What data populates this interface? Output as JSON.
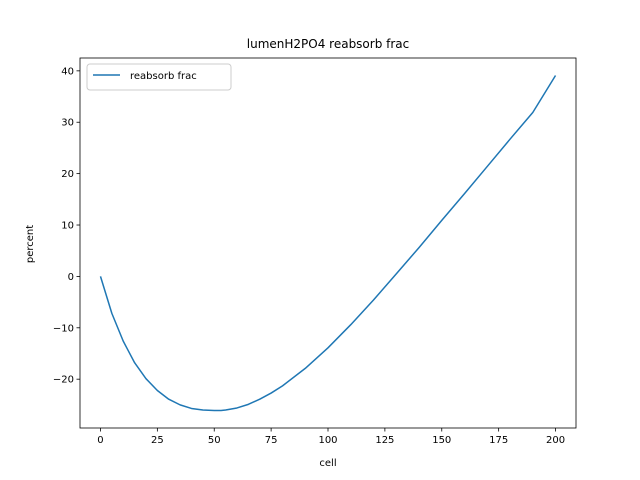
{
  "chart_data": {
    "type": "line",
    "title": "lumenH2PO4 reabsorb frac",
    "xlabel": "cell",
    "ylabel": "percent",
    "xlim": [
      -9,
      209
    ],
    "ylim": [
      -29.5,
      42.5
    ],
    "xticks": [
      0,
      25,
      50,
      75,
      100,
      125,
      150,
      175,
      200
    ],
    "yticks": [
      -20,
      -10,
      0,
      10,
      20,
      30,
      40
    ],
    "xtick_labels": [
      "0",
      "25",
      "50",
      "75",
      "100",
      "125",
      "150",
      "175",
      "200"
    ],
    "ytick_labels": [
      "−20",
      "−10",
      "0",
      "10",
      "20",
      "30",
      "40"
    ],
    "grid": false,
    "legend_position": "top-left",
    "series": [
      {
        "name": "reabsorb frac",
        "color": "#1f77b4",
        "x": [
          0,
          5,
          10,
          15,
          20,
          25,
          30,
          35,
          40,
          45,
          50,
          53,
          55,
          60,
          65,
          70,
          75,
          80,
          90,
          100,
          110,
          120,
          130,
          140,
          150,
          160,
          170,
          180,
          190,
          200
        ],
        "y": [
          0,
          -7.2,
          -12.6,
          -16.8,
          -19.9,
          -22.2,
          -23.9,
          -25.0,
          -25.7,
          -26.0,
          -26.1,
          -26.1,
          -26.0,
          -25.6,
          -24.9,
          -23.9,
          -22.7,
          -21.3,
          -17.9,
          -13.9,
          -9.4,
          -4.6,
          0.5,
          5.6,
          10.9,
          16.1,
          21.4,
          26.7,
          31.9,
          39.1
        ]
      }
    ]
  }
}
